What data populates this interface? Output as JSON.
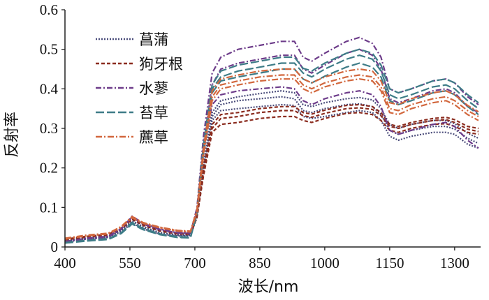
{
  "chart_data": {
    "type": "line",
    "xlabel": "波长/nm",
    "ylabel": "反射率",
    "xlim": [
      400,
      1360
    ],
    "ylim": [
      0,
      0.6
    ],
    "x_ticks": [
      400,
      550,
      700,
      850,
      1000,
      1150,
      1300
    ],
    "x_tick_labels": [
      "400",
      "550",
      "700",
      "850",
      "1000",
      "1150",
      "1300"
    ],
    "y_ticks": [
      0,
      0.1,
      0.2,
      0.3,
      0.4,
      0.5,
      0.6
    ],
    "y_tick_labels": [
      "0",
      "0.1",
      "0.2",
      "0.3",
      "0.4",
      "0.5",
      "0.6"
    ],
    "grid": false,
    "legend_position": "top-left",
    "x": [
      400,
      450,
      500,
      530,
      555,
      580,
      620,
      660,
      690,
      705,
      720,
      740,
      760,
      800,
      850,
      900,
      930,
      950,
      970,
      1000,
      1050,
      1080,
      1110,
      1130,
      1150,
      1170,
      1200,
      1250,
      1280,
      1300,
      1330,
      1355
    ],
    "series": [
      {
        "name": "菖蒲",
        "color": "#4a4c7a",
        "dash": "2,2",
        "curves": [
          [
            0.015,
            0.022,
            0.026,
            0.04,
            0.065,
            0.05,
            0.035,
            0.03,
            0.03,
            0.08,
            0.2,
            0.32,
            0.345,
            0.35,
            0.355,
            0.36,
            0.358,
            0.33,
            0.325,
            0.33,
            0.34,
            0.345,
            0.34,
            0.32,
            0.28,
            0.27,
            0.28,
            0.29,
            0.29,
            0.285,
            0.26,
            0.25
          ],
          [
            0.014,
            0.02,
            0.024,
            0.038,
            0.06,
            0.046,
            0.032,
            0.028,
            0.028,
            0.075,
            0.2,
            0.33,
            0.36,
            0.37,
            0.375,
            0.38,
            0.375,
            0.345,
            0.34,
            0.35,
            0.36,
            0.362,
            0.355,
            0.335,
            0.295,
            0.285,
            0.295,
            0.305,
            0.305,
            0.298,
            0.275,
            0.262
          ],
          [
            0.016,
            0.023,
            0.027,
            0.042,
            0.066,
            0.052,
            0.036,
            0.031,
            0.031,
            0.082,
            0.21,
            0.34,
            0.37,
            0.38,
            0.388,
            0.395,
            0.39,
            0.36,
            0.355,
            0.365,
            0.375,
            0.378,
            0.372,
            0.35,
            0.31,
            0.3,
            0.31,
            0.32,
            0.32,
            0.312,
            0.288,
            0.275
          ]
        ]
      },
      {
        "name": "狗牙根",
        "color": "#8b2c1f",
        "dash": "5,3",
        "curves": [
          [
            0.018,
            0.025,
            0.03,
            0.045,
            0.07,
            0.055,
            0.04,
            0.033,
            0.032,
            0.075,
            0.18,
            0.29,
            0.31,
            0.315,
            0.325,
            0.33,
            0.33,
            0.32,
            0.315,
            0.325,
            0.338,
            0.34,
            0.335,
            0.32,
            0.295,
            0.29,
            0.3,
            0.31,
            0.312,
            0.305,
            0.29,
            0.285
          ],
          [
            0.02,
            0.027,
            0.032,
            0.048,
            0.072,
            0.057,
            0.042,
            0.035,
            0.034,
            0.078,
            0.19,
            0.3,
            0.325,
            0.33,
            0.34,
            0.345,
            0.345,
            0.332,
            0.328,
            0.338,
            0.35,
            0.352,
            0.348,
            0.332,
            0.305,
            0.3,
            0.31,
            0.32,
            0.322,
            0.315,
            0.298,
            0.292
          ],
          [
            0.019,
            0.026,
            0.031,
            0.046,
            0.071,
            0.056,
            0.041,
            0.034,
            0.033,
            0.08,
            0.2,
            0.31,
            0.335,
            0.34,
            0.35,
            0.355,
            0.355,
            0.34,
            0.336,
            0.346,
            0.358,
            0.36,
            0.355,
            0.34,
            0.31,
            0.305,
            0.315,
            0.325,
            0.328,
            0.322,
            0.305,
            0.3
          ]
        ]
      },
      {
        "name": "水蓼",
        "color": "#6d3c8a",
        "dash": "8,3,2,3",
        "curves": [
          [
            0.012,
            0.02,
            0.025,
            0.045,
            0.078,
            0.06,
            0.045,
            0.036,
            0.035,
            0.1,
            0.28,
            0.44,
            0.48,
            0.5,
            0.51,
            0.52,
            0.52,
            0.48,
            0.47,
            0.49,
            0.52,
            0.53,
            0.515,
            0.48,
            0.4,
            0.39,
            0.4,
            0.42,
            0.425,
            0.415,
            0.38,
            0.36
          ],
          [
            0.013,
            0.021,
            0.026,
            0.046,
            0.075,
            0.058,
            0.043,
            0.035,
            0.034,
            0.095,
            0.26,
            0.41,
            0.45,
            0.465,
            0.475,
            0.485,
            0.485,
            0.45,
            0.44,
            0.46,
            0.49,
            0.5,
            0.485,
            0.45,
            0.375,
            0.365,
            0.375,
            0.395,
            0.4,
            0.39,
            0.355,
            0.34
          ],
          [
            0.014,
            0.022,
            0.027,
            0.047,
            0.076,
            0.059,
            0.044,
            0.036,
            0.035,
            0.09,
            0.24,
            0.36,
            0.385,
            0.395,
            0.4,
            0.405,
            0.4,
            0.37,
            0.36,
            0.375,
            0.39,
            0.395,
            0.385,
            0.355,
            0.295,
            0.285,
            0.295,
            0.31,
            0.315,
            0.305,
            0.27,
            0.25
          ]
        ]
      },
      {
        "name": "苔草",
        "color": "#3e7c87",
        "dash": "12,4",
        "curves": [
          [
            0.01,
            0.016,
            0.02,
            0.035,
            0.06,
            0.045,
            0.032,
            0.025,
            0.024,
            0.085,
            0.25,
            0.4,
            0.43,
            0.445,
            0.455,
            0.465,
            0.465,
            0.44,
            0.43,
            0.45,
            0.475,
            0.485,
            0.475,
            0.445,
            0.385,
            0.375,
            0.385,
            0.405,
            0.41,
            0.4,
            0.37,
            0.35
          ],
          [
            0.011,
            0.017,
            0.021,
            0.036,
            0.062,
            0.047,
            0.033,
            0.026,
            0.025,
            0.09,
            0.26,
            0.41,
            0.445,
            0.46,
            0.47,
            0.48,
            0.48,
            0.452,
            0.445,
            0.465,
            0.49,
            0.5,
            0.49,
            0.46,
            0.4,
            0.39,
            0.4,
            0.42,
            0.425,
            0.415,
            0.385,
            0.365
          ],
          [
            0.01,
            0.015,
            0.019,
            0.034,
            0.058,
            0.044,
            0.031,
            0.024,
            0.023,
            0.085,
            0.24,
            0.39,
            0.42,
            0.43,
            0.44,
            0.45,
            0.45,
            0.425,
            0.415,
            0.432,
            0.455,
            0.465,
            0.455,
            0.43,
            0.37,
            0.36,
            0.37,
            0.39,
            0.395,
            0.385,
            0.355,
            0.335
          ]
        ]
      },
      {
        "name": "藨草",
        "color": "#d2673d",
        "dash": "9,3,2,3",
        "curves": [
          [
            0.02,
            0.028,
            0.033,
            0.05,
            0.075,
            0.06,
            0.048,
            0.04,
            0.038,
            0.09,
            0.24,
            0.38,
            0.41,
            0.42,
            0.43,
            0.435,
            0.435,
            0.41,
            0.4,
            0.415,
            0.43,
            0.435,
            0.43,
            0.405,
            0.35,
            0.345,
            0.36,
            0.375,
            0.38,
            0.37,
            0.345,
            0.33
          ],
          [
            0.021,
            0.029,
            0.034,
            0.052,
            0.077,
            0.062,
            0.05,
            0.042,
            0.04,
            0.095,
            0.25,
            0.395,
            0.425,
            0.435,
            0.445,
            0.45,
            0.45,
            0.425,
            0.415,
            0.43,
            0.445,
            0.45,
            0.445,
            0.42,
            0.365,
            0.36,
            0.375,
            0.39,
            0.395,
            0.385,
            0.358,
            0.342
          ],
          [
            0.022,
            0.03,
            0.035,
            0.051,
            0.074,
            0.06,
            0.049,
            0.041,
            0.039,
            0.088,
            0.23,
            0.37,
            0.4,
            0.41,
            0.42,
            0.425,
            0.425,
            0.4,
            0.39,
            0.405,
            0.42,
            0.425,
            0.42,
            0.395,
            0.34,
            0.335,
            0.35,
            0.365,
            0.37,
            0.36,
            0.335,
            0.32
          ]
        ]
      }
    ]
  }
}
